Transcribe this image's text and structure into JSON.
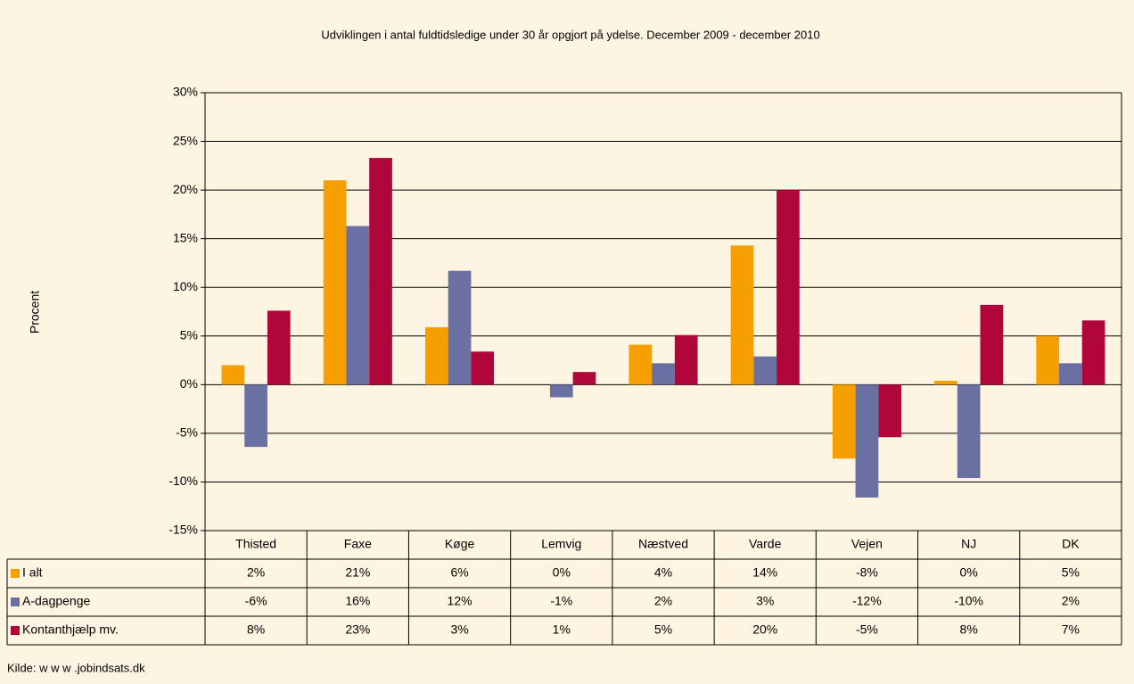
{
  "chart_data": {
    "type": "bar",
    "title": "Udviklingen i antal fuldtidsledige under 30 år opgjort på ydelse. December 2009 - december 2010",
    "y_label": "Procent",
    "source": "Kilde: w w w .jobindsats.dk",
    "categories": [
      "Thisted",
      "Faxe",
      "Køge",
      "Lemvig",
      "Næstved",
      "Varde",
      "Vejen",
      "NJ",
      "DK"
    ],
    "series": [
      {
        "name": "I alt",
        "color": "#f5a000",
        "values": [
          2,
          21,
          5.9,
          0,
          4.1,
          14.3,
          -7.6,
          0.4,
          5.0
        ],
        "value_labels": [
          "2%",
          "21%",
          "6%",
          "0%",
          "4%",
          "14%",
          "-8%",
          "0%",
          "5%"
        ]
      },
      {
        "name": "A-dagpenge",
        "color": "#6a70a2",
        "values": [
          -6.4,
          16.3,
          11.7,
          -1.3,
          2.2,
          2.9,
          -11.6,
          -9.6,
          2.2
        ],
        "value_labels": [
          "-6%",
          "16%",
          "12%",
          "-1%",
          "2%",
          "3%",
          "-12%",
          "-10%",
          "2%"
        ]
      },
      {
        "name": "Kontanthjælp mv.",
        "color": "#b0063a",
        "values": [
          7.6,
          23.3,
          3.4,
          1.3,
          5.1,
          20,
          -5.4,
          8.2,
          6.6
        ],
        "value_labels": [
          "8%",
          "23%",
          "3%",
          "1%",
          "5%",
          "20%",
          "-5%",
          "8%",
          "7%"
        ]
      }
    ],
    "ylim": [
      -15,
      30
    ],
    "yticks": [
      {
        "value": -15,
        "label": "-15%"
      },
      {
        "value": -10,
        "label": "-10%"
      },
      {
        "value": -5,
        "label": "-5%"
      },
      {
        "value": 0,
        "label": "0%"
      },
      {
        "value": 5,
        "label": "5%"
      },
      {
        "value": 10,
        "label": "10%"
      },
      {
        "value": 15,
        "label": "15%"
      },
      {
        "value": 20,
        "label": "20%"
      },
      {
        "value": 25,
        "label": "25%"
      },
      {
        "value": 30,
        "label": "30%"
      }
    ],
    "grid": true
  }
}
